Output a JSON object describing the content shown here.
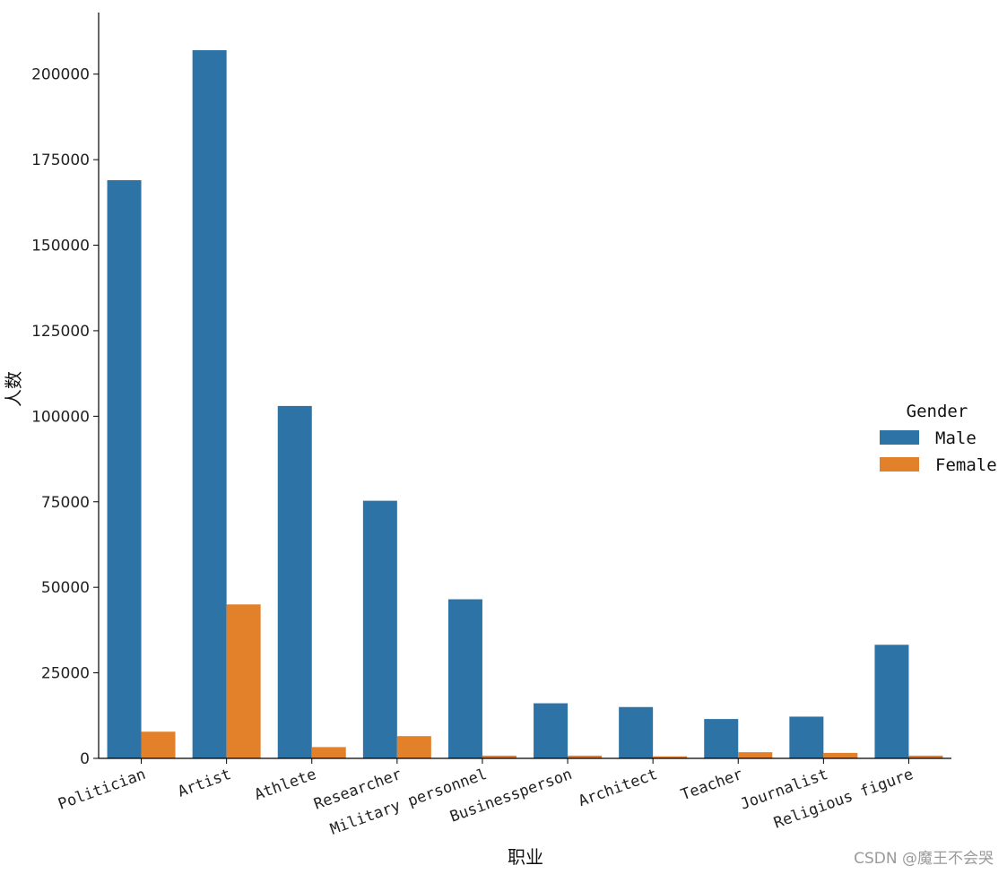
{
  "chart_data": {
    "type": "bar",
    "title": "",
    "xlabel": "职业",
    "ylabel": "人数",
    "categories": [
      "Politician",
      "Artist",
      "Athlete",
      "Researcher",
      "Military personnel",
      "Businessperson",
      "Architect",
      "Teacher",
      "Journalist",
      "Religious figure"
    ],
    "series": [
      {
        "name": "Male",
        "color": "#2e73a6",
        "values": [
          169000,
          207000,
          103000,
          75300,
          46500,
          16100,
          15000,
          11500,
          12200,
          33200
        ]
      },
      {
        "name": "Female",
        "color": "#e3812b",
        "values": [
          7800,
          45000,
          3300,
          6500,
          800,
          800,
          600,
          1800,
          1600,
          800
        ]
      }
    ],
    "ylim": [
      0,
      218000
    ],
    "yticks": [
      0,
      25000,
      50000,
      75000,
      100000,
      125000,
      150000,
      175000,
      200000
    ],
    "legend": {
      "title": "Gender",
      "position": "right"
    },
    "grid": false
  },
  "watermark": "CSDN @魔王不会哭"
}
